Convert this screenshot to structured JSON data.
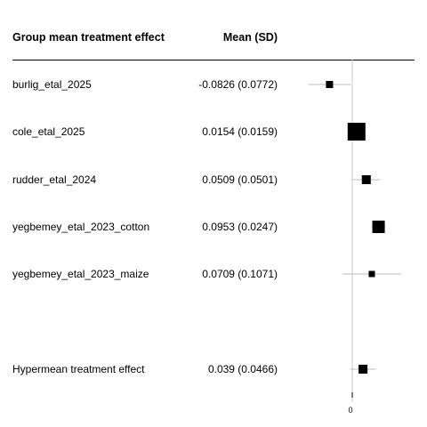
{
  "header": {
    "label": "Group mean treatment effect",
    "value": "Mean (SD)"
  },
  "chart_data": {
    "type": "scatter",
    "subtype": "forest",
    "rows": [
      {
        "label": "burlig_etal_2025",
        "value_text": "-0.0826 (0.0772)",
        "mean": -0.0826,
        "sd": 0.0772
      },
      {
        "label": "cole_etal_2025",
        "value_text": "0.0154 (0.0159)",
        "mean": 0.0154,
        "sd": 0.0159
      },
      {
        "label": "rudder_etal_2024",
        "value_text": "0.0509 (0.0501)",
        "mean": 0.0509,
        "sd": 0.0501
      },
      {
        "label": "yegbemey_etal_2023_cotton",
        "value_text": "0.0953 (0.0247)",
        "mean": 0.0953,
        "sd": 0.0247
      },
      {
        "label": "yegbemey_etal_2023_maize",
        "value_text": "0.0709 (0.1071)",
        "mean": 0.0709,
        "sd": 0.1071
      }
    ],
    "summary": {
      "label": "Hypermean treatment effect",
      "value_text": "0.039 (0.0466)",
      "mean": 0.039,
      "sd": 0.0466
    },
    "x_ticks": [
      0
    ],
    "tick_labels": [
      "0"
    ],
    "reference_line": 0
  }
}
